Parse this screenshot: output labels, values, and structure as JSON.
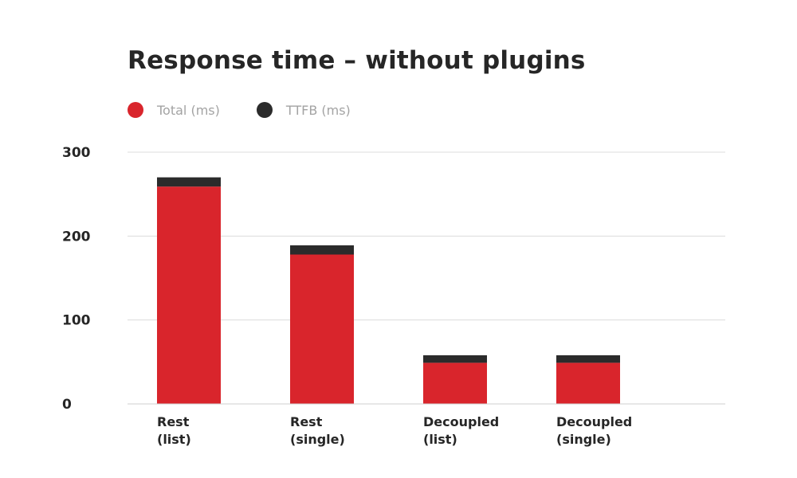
{
  "chart_data": {
    "type": "bar",
    "stacked": true,
    "title": "Response time – without plugins",
    "categories": [
      [
        "Rest",
        "(list)"
      ],
      [
        "Rest",
        "(single)"
      ],
      [
        "Decoupled",
        "(list)"
      ],
      [
        "Decoupled",
        "(single)"
      ]
    ],
    "series": [
      {
        "name": "Total (ms)",
        "color": "#d9252c",
        "values": [
          259,
          178,
          49,
          49
        ]
      },
      {
        "name": "TTFB (ms)",
        "color": "#2b2b2b",
        "values": [
          11,
          11,
          9,
          9
        ]
      }
    ],
    "yticks": [
      "0",
      "100",
      "200",
      "300"
    ],
    "ylim": [
      0,
      300
    ],
    "grid": true,
    "legend": "top-left"
  }
}
